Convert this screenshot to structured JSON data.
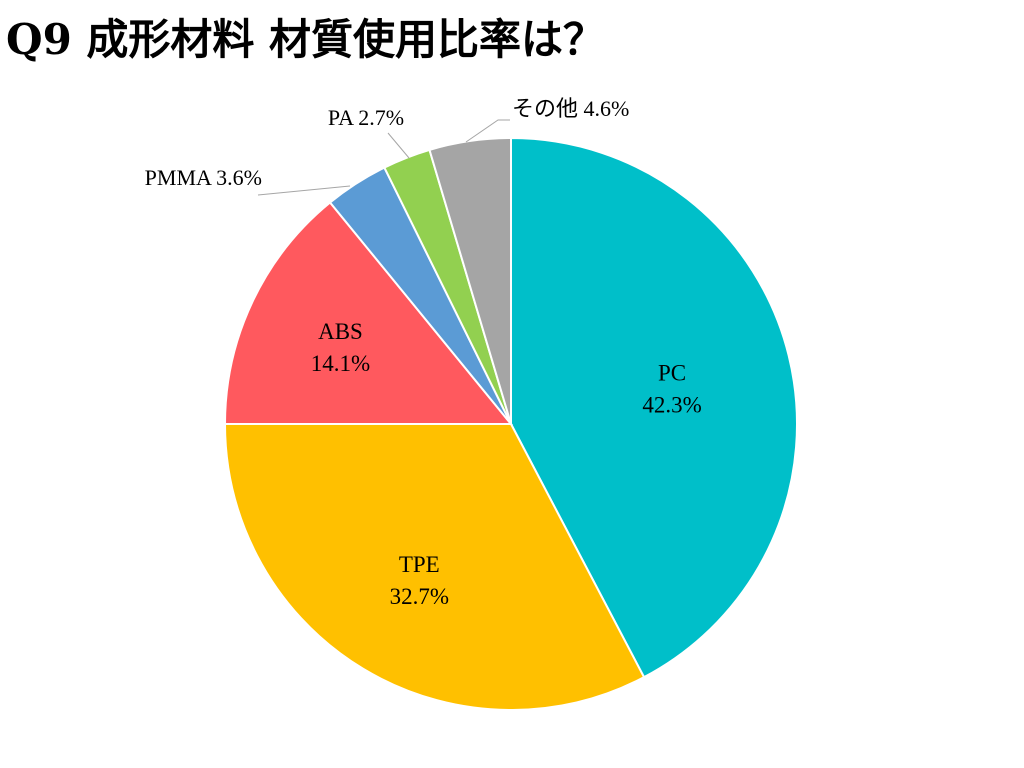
{
  "chart_data": {
    "type": "pie",
    "title": "Q9 成形材料 材質使用比率は？",
    "unit": "%",
    "start": "12 o'clock",
    "direction": "clockwise",
    "slices": [
      {
        "label": "PC",
        "value": 42.3,
        "display": "42.3%",
        "color": "#00BFC9",
        "label_position": "inside"
      },
      {
        "label": "TPE",
        "value": 32.7,
        "display": "32.7%",
        "color": "#FFC000",
        "label_position": "inside"
      },
      {
        "label": "ABS",
        "value": 14.1,
        "display": "14.1%",
        "color": "#FF595E",
        "label_position": "inside"
      },
      {
        "label": "PMMA",
        "value": 3.6,
        "display": "3.6%",
        "color": "#5B9BD5",
        "label_position": "outside"
      },
      {
        "label": "PA",
        "value": 2.7,
        "display": "2.7%",
        "color": "#92D050",
        "label_position": "outside"
      },
      {
        "label": "その他",
        "value": 4.6,
        "display": "4.6%",
        "color": "#A5A5A5",
        "label_position": "outside"
      }
    ]
  }
}
